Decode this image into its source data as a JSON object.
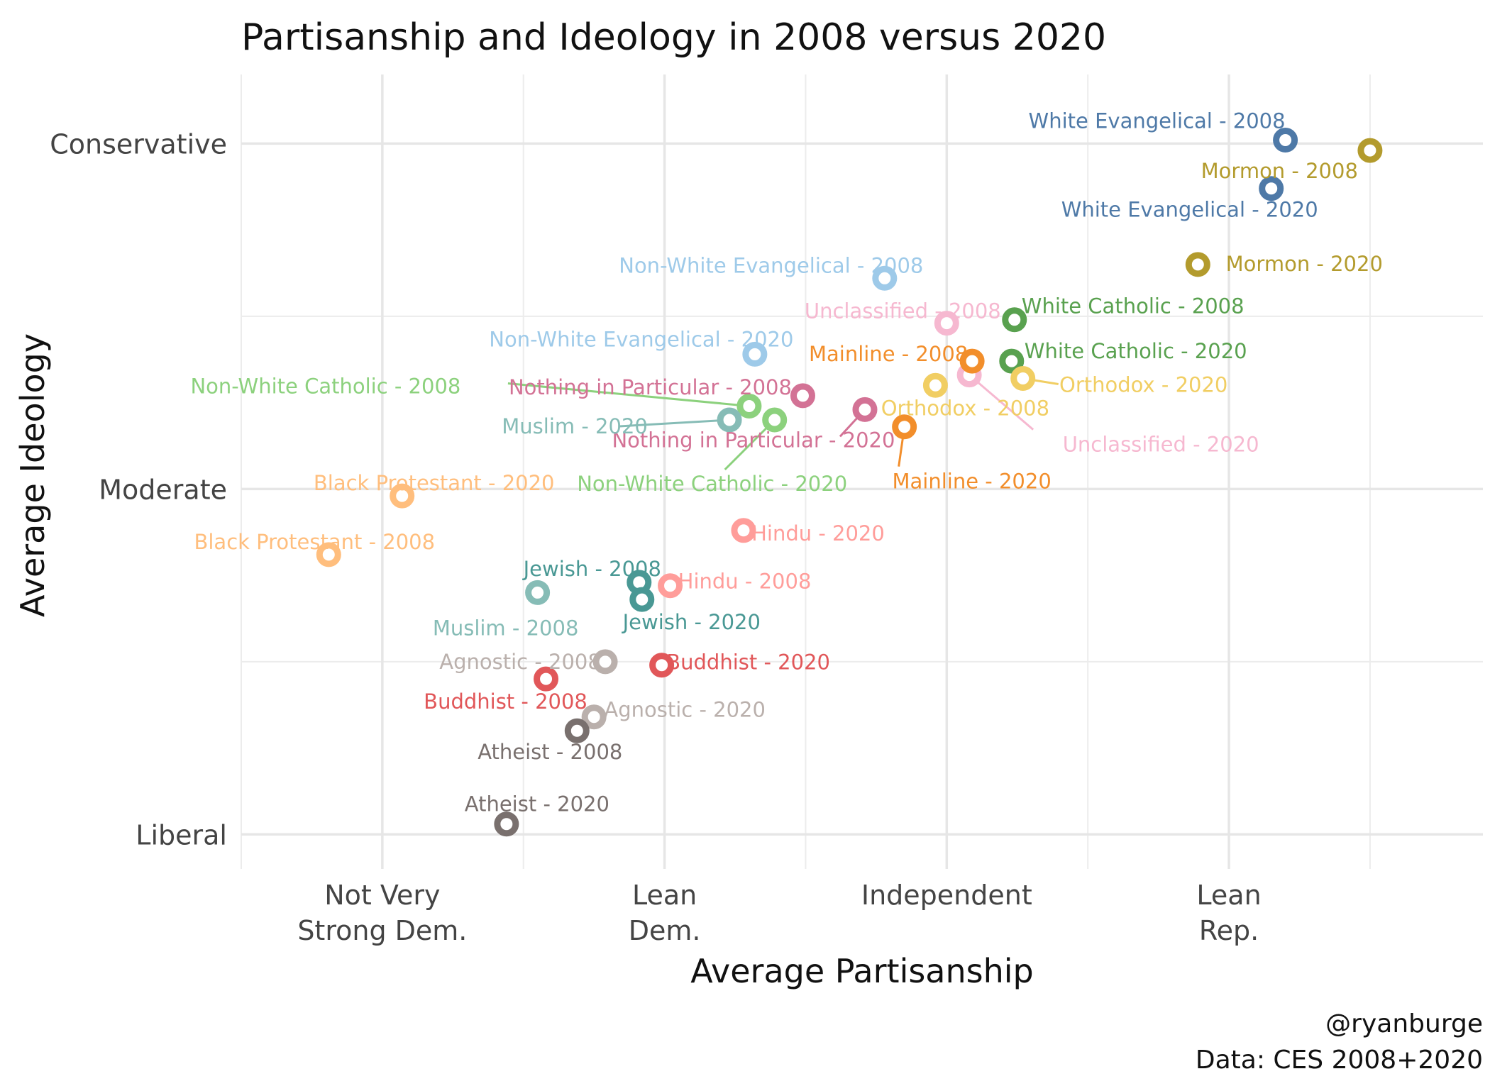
{
  "chart_data": {
    "type": "scatter",
    "title": "Partisanship and Ideology in 2008 versus 2020",
    "xlabel": "Average Partisanship",
    "ylabel": "Average Ideology",
    "xlim": [
      1.5,
      5.9
    ],
    "ylim": [
      0.9,
      3.2
    ],
    "x_ticks": [
      {
        "value": 2,
        "label": "Not Very\nStrong Dem."
      },
      {
        "value": 3,
        "label": "Lean\nDem."
      },
      {
        "value": 4,
        "label": "Independent"
      },
      {
        "value": 5,
        "label": "Lean\nRep."
      }
    ],
    "y_ticks": [
      {
        "value": 1,
        "label": "Liberal"
      },
      {
        "value": 2,
        "label": "Moderate"
      },
      {
        "value": 3,
        "label": "Conservative"
      }
    ],
    "grid": true,
    "caption": [
      "@ryanburge",
      "Data: CES 2008+2020"
    ],
    "points": [
      {
        "label": "White Evangelical - 2008",
        "x": 5.2,
        "y": 3.01,
        "color": "#4e79a7"
      },
      {
        "label": "White Evangelical - 2020",
        "x": 5.15,
        "y": 2.87,
        "color": "#4e79a7"
      },
      {
        "label": "Mormon - 2008",
        "x": 5.5,
        "y": 2.98,
        "color": "#b39b2d"
      },
      {
        "label": "Mormon - 2020",
        "x": 4.89,
        "y": 2.65,
        "color": "#b39b2d"
      },
      {
        "label": "Non-White Evangelical - 2008",
        "x": 3.78,
        "y": 2.61,
        "color": "#9ecae9"
      },
      {
        "label": "Non-White Evangelical - 2020",
        "x": 3.32,
        "y": 2.39,
        "color": "#9ecae9"
      },
      {
        "label": "Unclassified - 2008",
        "x": 4.0,
        "y": 2.48,
        "color": "#f6b8d0"
      },
      {
        "label": "Unclassified - 2020",
        "x": 4.08,
        "y": 2.33,
        "color": "#f6b8d0"
      },
      {
        "label": "White Catholic - 2008",
        "x": 4.24,
        "y": 2.49,
        "color": "#59a14f"
      },
      {
        "label": "White Catholic - 2020",
        "x": 4.23,
        "y": 2.37,
        "color": "#59a14f"
      },
      {
        "label": "Mainline - 2008",
        "x": 4.09,
        "y": 2.37,
        "color": "#f28e2b"
      },
      {
        "label": "Mainline - 2020",
        "x": 3.85,
        "y": 2.18,
        "color": "#f28e2b"
      },
      {
        "label": "Orthodox - 2008",
        "x": 3.96,
        "y": 2.3,
        "color": "#f1ce63"
      },
      {
        "label": "Orthodox - 2020",
        "x": 4.27,
        "y": 2.32,
        "color": "#f1ce63"
      },
      {
        "label": "Nothing in Particular - 2008",
        "x": 3.49,
        "y": 2.27,
        "color": "#d37295"
      },
      {
        "label": "Nothing in Particular - 2020",
        "x": 3.71,
        "y": 2.23,
        "color": "#d37295"
      },
      {
        "label": "Non-White Catholic - 2008",
        "x": 3.3,
        "y": 2.24,
        "color": "#8cd17d"
      },
      {
        "label": "Non-White Catholic - 2020",
        "x": 3.39,
        "y": 2.2,
        "color": "#8cd17d"
      },
      {
        "label": "Muslim - 2008",
        "x": 2.55,
        "y": 1.7,
        "color": "#86bcb6"
      },
      {
        "label": "Muslim - 2020",
        "x": 3.23,
        "y": 2.2,
        "color": "#86bcb6"
      },
      {
        "label": "Black Protestant - 2008",
        "x": 1.81,
        "y": 1.81,
        "color": "#ffbe7d"
      },
      {
        "label": "Black Protestant - 2020",
        "x": 2.07,
        "y": 1.98,
        "color": "#ffbe7d"
      },
      {
        "label": "Hindu - 2008",
        "x": 3.02,
        "y": 1.72,
        "color": "#ff9d9a"
      },
      {
        "label": "Hindu - 2020",
        "x": 3.28,
        "y": 1.88,
        "color": "#ff9d9a"
      },
      {
        "label": "Jewish - 2008",
        "x": 2.91,
        "y": 1.73,
        "color": "#499894"
      },
      {
        "label": "Jewish - 2020",
        "x": 2.92,
        "y": 1.68,
        "color": "#499894"
      },
      {
        "label": "Agnostic - 2008",
        "x": 2.79,
        "y": 1.5,
        "color": "#bab0ac"
      },
      {
        "label": "Agnostic - 2020",
        "x": 2.75,
        "y": 1.34,
        "color": "#bab0ac"
      },
      {
        "label": "Buddhist - 2008",
        "x": 2.58,
        "y": 1.45,
        "color": "#e15759"
      },
      {
        "label": "Buddhist - 2020",
        "x": 2.99,
        "y": 1.49,
        "color": "#e15759"
      },
      {
        "label": "Atheist - 2008",
        "x": 2.69,
        "y": 1.3,
        "color": "#79706e"
      },
      {
        "label": "Atheist - 2020",
        "x": 2.44,
        "y": 1.03,
        "color": "#79706e"
      }
    ]
  }
}
